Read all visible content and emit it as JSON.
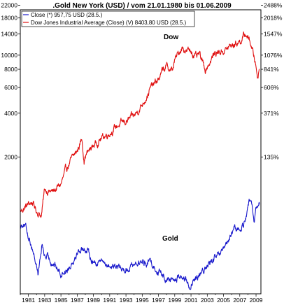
{
  "chart_data": {
    "type": "line",
    "title": ".Gold New York (USD) / vom 21.01.1980 bis 01.06.2009",
    "y_scale": "log",
    "left_ticks": [
      22000,
      18000,
      14000,
      10000,
      8000,
      6000,
      4000,
      2000
    ],
    "left_tick_labels": [
      "22000",
      "18000",
      "14000",
      "10000",
      "8000",
      "6000",
      "4000",
      "2000"
    ],
    "right_tick_labels": [
      "2488%",
      "2018%",
      "1547%",
      "1076%",
      "841%",
      "606%",
      "371%",
      "135%"
    ],
    "x_tick_labels": [
      "1981",
      "1983",
      "1985",
      "1987",
      "1989",
      "1991",
      "1993",
      "1995",
      "1997",
      "1999",
      "2001",
      "2003",
      "2005",
      "2007",
      "2009"
    ],
    "xlim": [
      1980.0,
      2009.6
    ],
    "legend": [
      {
        "text": "Close (*) 957,75 USD (28.5.)",
        "color": "#1a1acc"
      },
      {
        "text": "Dow Jones Industrial Average (Close) (V) 8403,80 USD (28.5.)",
        "color": "#e01010"
      }
    ],
    "annotations": [
      "Dow",
      "Gold"
    ],
    "series": [
      {
        "name": "Dow Jones Industrial Average (Close)",
        "color": "#e01010",
        "x": [
          1980.05,
          1981.0,
          1981.5,
          1982.0,
          1982.6,
          1983.0,
          1984.0,
          1985.0,
          1985.5,
          1986.0,
          1987.0,
          1987.6,
          1987.85,
          1988.0,
          1989.0,
          1990.0,
          1991.0,
          1992.0,
          1993.0,
          1994.0,
          1995.0,
          1996.0,
          1997.0,
          1997.6,
          1998.0,
          1998.7,
          1999.0,
          1999.9,
          2000.5,
          2001.0,
          2001.7,
          2002.0,
          2002.75,
          2003.2,
          2004.0,
          2005.0,
          2006.0,
          2007.0,
          2007.8,
          2008.3,
          2008.8,
          2009.0,
          2009.2,
          2009.42
        ],
        "values": [
          850,
          950,
          980,
          850,
          800,
          1200,
          1150,
          1300,
          1550,
          1800,
          2200,
          2700,
          1900,
          2050,
          2400,
          2700,
          2950,
          3300,
          3500,
          3800,
          4600,
          5900,
          6800,
          8000,
          8300,
          7800,
          9200,
          11400,
          10600,
          10800,
          9500,
          10000,
          8000,
          8800,
          10400,
          10700,
          11600,
          12500,
          13900,
          12300,
          9500,
          8400,
          7000,
          8400
        ]
      },
      {
        "name": "Gold Close",
        "color": "#1a1acc",
        "x": [
          1980.05,
          1980.4,
          1980.9,
          1981.5,
          1982.2,
          1982.7,
          1983.0,
          1984.0,
          1985.0,
          1986.0,
          1987.0,
          1987.9,
          1988.5,
          1989.0,
          1990.0,
          1991.0,
          1992.0,
          1993.0,
          1994.0,
          1995.0,
          1996.0,
          1997.0,
          1998.0,
          1999.0,
          1999.8,
          2000.5,
          2001.0,
          2001.5,
          2002.0,
          2003.0,
          2004.0,
          2005.0,
          2006.0,
          2006.5,
          2007.0,
          2007.5,
          2008.0,
          2008.2,
          2008.8,
          2009.0,
          2009.42
        ],
        "values": [
          670,
          720,
          600,
          480,
          320,
          500,
          420,
          380,
          320,
          350,
          450,
          480,
          430,
          380,
          390,
          360,
          345,
          340,
          375,
          380,
          385,
          330,
          295,
          285,
          310,
          275,
          260,
          280,
          300,
          360,
          405,
          440,
          600,
          650,
          620,
          710,
          900,
          1000,
          740,
          900,
          958
        ]
      }
    ]
  }
}
